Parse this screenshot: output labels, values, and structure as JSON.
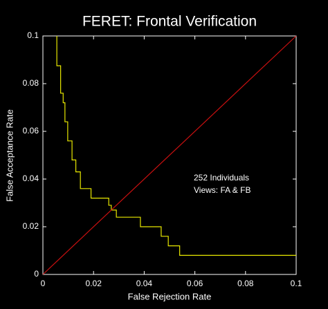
{
  "chart_data": {
    "type": "line",
    "title": "FERET: Frontal Verification",
    "xlabel": "False Rejection Rate",
    "ylabel": "False Acceptance Rate",
    "annotations": [
      "252 Individuals",
      "Views: FA & FB"
    ],
    "xlim": [
      0,
      0.1
    ],
    "ylim": [
      0,
      0.1
    ],
    "xticks": [
      0,
      0.02,
      0.04,
      0.06,
      0.08,
      0.1
    ],
    "yticks": [
      0,
      0.02,
      0.04,
      0.06,
      0.08,
      0.1
    ],
    "series": [
      {
        "color": "#e8e800",
        "x": [
          0.0055,
          0.0055,
          0.007,
          0.007,
          0.008,
          0.008,
          0.0087,
          0.0087,
          0.0098,
          0.0098,
          0.0115,
          0.0115,
          0.013,
          0.013,
          0.0148,
          0.0148,
          0.019,
          0.019,
          0.026,
          0.026,
          0.027,
          0.027,
          0.029,
          0.029,
          0.0385,
          0.0385,
          0.0467,
          0.0467,
          0.0495,
          0.0495,
          0.054,
          0.054,
          0.1
        ],
        "values": [
          0.1,
          0.0875,
          0.0875,
          0.076,
          0.076,
          0.072,
          0.072,
          0.064,
          0.064,
          0.056,
          0.056,
          0.048,
          0.048,
          0.043,
          0.043,
          0.036,
          0.036,
          0.032,
          0.032,
          0.029,
          0.029,
          0.027,
          0.027,
          0.024,
          0.024,
          0.02,
          0.02,
          0.016,
          0.016,
          0.012,
          0.012,
          0.008,
          0.008
        ]
      },
      {
        "color": "#cc1010",
        "x": [
          0,
          0.1
        ],
        "values": [
          0,
          0.1
        ]
      }
    ]
  }
}
